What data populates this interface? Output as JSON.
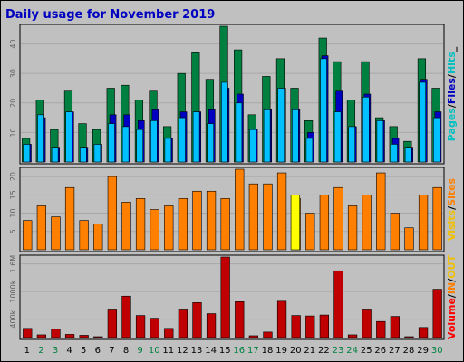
{
  "chart_data": {
    "type": "bar",
    "title": "Daily usage for November 2019",
    "days": [
      {
        "label": "1",
        "weekend": false
      },
      {
        "label": "2",
        "weekend": true
      },
      {
        "label": "3",
        "weekend": true
      },
      {
        "label": "4",
        "weekend": false
      },
      {
        "label": "5",
        "weekend": false
      },
      {
        "label": "6",
        "weekend": false
      },
      {
        "label": "7",
        "weekend": false
      },
      {
        "label": "8",
        "weekend": false
      },
      {
        "label": "9",
        "weekend": true
      },
      {
        "label": "10",
        "weekend": true
      },
      {
        "label": "11",
        "weekend": false
      },
      {
        "label": "12",
        "weekend": false
      },
      {
        "label": "13",
        "weekend": false
      },
      {
        "label": "14",
        "weekend": false
      },
      {
        "label": "15",
        "weekend": false
      },
      {
        "label": "16",
        "weekend": true
      },
      {
        "label": "17",
        "weekend": true
      },
      {
        "label": "18",
        "weekend": false
      },
      {
        "label": "19",
        "weekend": false
      },
      {
        "label": "20",
        "weekend": false
      },
      {
        "label": "21",
        "weekend": false
      },
      {
        "label": "22",
        "weekend": false
      },
      {
        "label": "23",
        "weekend": true
      },
      {
        "label": "24",
        "weekend": true
      },
      {
        "label": "25",
        "weekend": false
      },
      {
        "label": "26",
        "weekend": false
      },
      {
        "label": "27",
        "weekend": false
      },
      {
        "label": "28",
        "weekend": false
      },
      {
        "label": "29",
        "weekend": false
      },
      {
        "label": "30",
        "weekend": true
      }
    ],
    "panels": [
      {
        "id": "hits-files-pages",
        "legend": [
          {
            "text": "Pages",
            "color": "#00c0c0"
          },
          {
            "text": "/",
            "color": "#000000"
          },
          {
            "text": "Files",
            "color": "#0000c0"
          },
          {
            "text": "/",
            "color": "#000000"
          },
          {
            "text": "Hits",
            "color": "#00c0c0"
          },
          {
            "text": "_",
            "color": "#000000"
          }
        ],
        "yticks": [
          "10",
          "20",
          "30",
          "40"
        ],
        "ylim": [
          0,
          46
        ],
        "series": [
          {
            "name": "Hits",
            "color": "#008040",
            "values": [
              8,
              21,
              11,
              24,
              13,
              11,
              25,
              26,
              21,
              24,
              12,
              30,
              37,
              28,
              46,
              38,
              16,
              29,
              35,
              25,
              14,
              42,
              34,
              21,
              34,
              15,
              12,
              7,
              35,
              25
            ]
          },
          {
            "name": "Files",
            "color": "#0000c0",
            "values": [
              6,
              15,
              5,
              17,
              5,
              6,
              16,
              16,
              14,
              18,
              8,
              17,
              17,
              18,
              25,
              23,
              11,
              18,
              25,
              18,
              10,
              36,
              24,
              12,
              23,
              14,
              8,
              5,
              28,
              17
            ]
          },
          {
            "name": "Pages",
            "color": "#00c0ff",
            "values": [
              6,
              16,
              5,
              17,
              5,
              6,
              13,
              12,
              11,
              14,
              8,
              15,
              17,
              13,
              27,
              20,
              11,
              18,
              25,
              18,
              8,
              35,
              17,
              12,
              22,
              14,
              6,
              5,
              27,
              15
            ]
          }
        ]
      },
      {
        "id": "sites-visits",
        "legend": [
          {
            "text": "Visits",
            "color": "#f0c000"
          },
          {
            "text": "/",
            "color": "#000000"
          },
          {
            "text": "Sites",
            "color": "#ff8000"
          }
        ],
        "yticks": [
          "5",
          "10",
          "15",
          "20"
        ],
        "ylim": [
          0,
          22
        ],
        "series": [
          {
            "name": "Sites",
            "color": "#ff8000",
            "values": [
              8,
              12,
              9,
              17,
              8,
              7,
              20,
              13,
              14,
              11,
              12,
              14,
              16,
              16,
              14,
              22,
              18,
              18,
              21,
              14,
              10,
              15,
              17,
              12,
              15,
              21,
              10,
              6,
              15,
              17
            ]
          },
          {
            "name": "Visits",
            "color": "#ffff00",
            "values": [
              0,
              0,
              0,
              0,
              0,
              0,
              0,
              0,
              0,
              0,
              0,
              0,
              0,
              0,
              0,
              0,
              0,
              0,
              0,
              15,
              0,
              0,
              0,
              0,
              0,
              0,
              0,
              0,
              0,
              0
            ]
          }
        ]
      },
      {
        "id": "volume",
        "legend": [
          {
            "text": "Volume",
            "color": "#ff0000"
          },
          {
            "text": "/",
            "color": "#000000"
          },
          {
            "text": "IN",
            "color": "#ff8000"
          },
          {
            "text": "/",
            "color": "#000000"
          },
          {
            "text": "OUT",
            "color": "#f0c000"
          }
        ],
        "yticks": [
          "400k",
          "1000k",
          "1.6M"
        ],
        "ylim": [
          0,
          1750
        ],
        "series": [
          {
            "name": "Volume",
            "color": "#c00000",
            "values": [
              200,
              60,
              180,
              70,
              50,
              20,
              620,
              900,
              480,
              420,
              200,
              620,
              760,
              520,
              1750,
              780,
              40,
              120,
              790,
              480,
              470,
              490,
              1450,
              60,
              620,
              350,
              460,
              20,
              220,
              1050
            ]
          }
        ]
      }
    ]
  }
}
